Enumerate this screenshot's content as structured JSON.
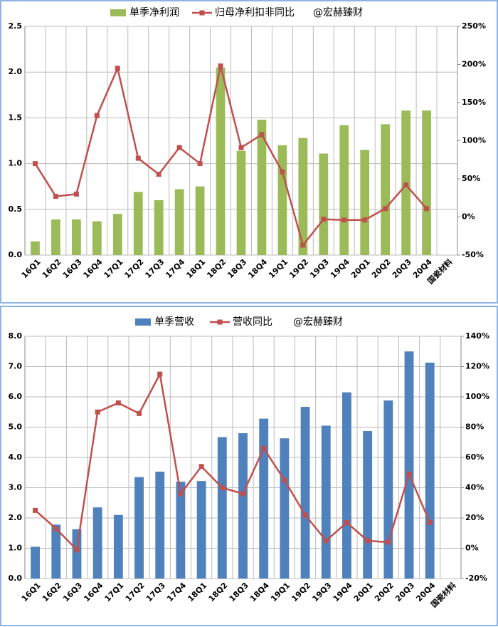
{
  "chart_data": [
    {
      "type": "bar_line",
      "categories": [
        "16Q1",
        "16Q2",
        "16Q3",
        "16Q4",
        "17Q1",
        "17Q2",
        "17Q3",
        "17Q4",
        "18Q1",
        "18Q2",
        "18Q3",
        "18Q4",
        "19Q1",
        "19Q2",
        "19Q3",
        "19Q4",
        "20Q1",
        "20Q2",
        "20Q3",
        "20Q4",
        "国瓷材料"
      ],
      "series": [
        {
          "name": "单季净利润",
          "color": "#9bbb59",
          "kind": "bar",
          "values": [
            0.15,
            0.39,
            0.39,
            0.37,
            0.45,
            0.69,
            0.6,
            0.72,
            0.75,
            2.05,
            1.14,
            1.48,
            1.2,
            1.28,
            1.11,
            1.42,
            1.15,
            1.43,
            1.58,
            1.58,
            null
          ]
        },
        {
          "name": "归母净利扣非同比",
          "color": "#c0504d",
          "kind": "line",
          "axis": "y2",
          "values": [
            70,
            27,
            30,
            133,
            195,
            77,
            56,
            91,
            70,
            198,
            91,
            108,
            59,
            -37,
            -3,
            -4,
            -4,
            11,
            42,
            11,
            null
          ]
        }
      ],
      "annotation": "@宏赫臻财",
      "ylim": [
        0,
        2.5
      ],
      "yticks": [
        {
          "value": 0,
          "label": "0.0"
        },
        0.5,
        {
          "value": 1,
          "label": "1.0"
        },
        1.5,
        {
          "value": 2,
          "label": "2.0"
        },
        2.5
      ],
      "y2lim": [
        -50,
        250
      ],
      "y2ticks": [
        {
          "value": -50,
          "label": "-50%"
        },
        {
          "value": 0,
          "label": "0%"
        },
        {
          "value": 50,
          "label": "50%"
        },
        {
          "value": 100,
          "label": "100%"
        },
        {
          "value": 150,
          "label": "150%"
        },
        {
          "value": 200,
          "label": "200%"
        },
        {
          "value": 250,
          "label": "250%"
        }
      ],
      "grid": true
    },
    {
      "type": "bar_line",
      "categories": [
        "16Q1",
        "16Q2",
        "16Q3",
        "16Q4",
        "17Q1",
        "17Q2",
        "17Q3",
        "17Q4",
        "18Q1",
        "18Q2",
        "18Q3",
        "18Q4",
        "19Q1",
        "19Q2",
        "19Q3",
        "19Q4",
        "20Q1",
        "20Q2",
        "20Q3",
        "20Q4",
        "国瓷材料"
      ],
      "series": [
        {
          "name": "单季营收",
          "color": "#4f81bd",
          "kind": "bar",
          "values": [
            1.05,
            1.78,
            1.63,
            2.35,
            2.1,
            3.35,
            3.53,
            3.2,
            3.22,
            4.67,
            4.8,
            5.28,
            4.63,
            5.67,
            5.05,
            6.15,
            4.87,
            5.88,
            7.5,
            7.13,
            null
          ]
        },
        {
          "name": "营收同比",
          "color": "#c0504d",
          "kind": "line",
          "axis": "y2",
          "values": [
            25,
            13,
            -1,
            90,
            96,
            89,
            115,
            36,
            54,
            40,
            36,
            66,
            45,
            22,
            5,
            17,
            5,
            4,
            49,
            17,
            null
          ]
        }
      ],
      "annotation": "@宏赫臻财",
      "ylim": [
        0,
        8
      ],
      "yticks": [
        {
          "value": 0,
          "label": "0.0"
        },
        {
          "value": 1,
          "label": "1.0"
        },
        {
          "value": 2,
          "label": "2.0"
        },
        {
          "value": 3,
          "label": "3.0"
        },
        {
          "value": 4,
          "label": "4.0"
        },
        {
          "value": 5,
          "label": "5.0"
        },
        {
          "value": 6,
          "label": "6.0"
        },
        {
          "value": 7,
          "label": "7.0"
        },
        {
          "value": 8,
          "label": "8.0"
        }
      ],
      "y2lim": [
        -20,
        140
      ],
      "y2ticks": [
        {
          "value": -20,
          "label": "-20%"
        },
        {
          "value": 0,
          "label": "0%"
        },
        {
          "value": 20,
          "label": "20%"
        },
        {
          "value": 40,
          "label": "40%"
        },
        {
          "value": 60,
          "label": "60%"
        },
        {
          "value": 80,
          "label": "80%"
        },
        {
          "value": 100,
          "label": "100%"
        },
        {
          "value": 120,
          "label": "120%"
        },
        {
          "value": 140,
          "label": "140%"
        }
      ],
      "grid": true
    }
  ]
}
